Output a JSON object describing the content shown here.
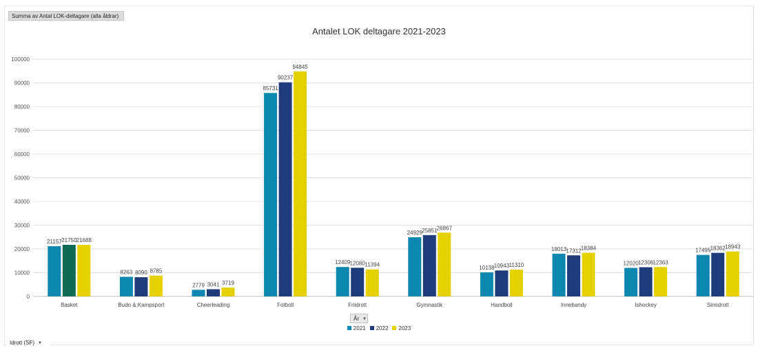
{
  "value_field_label": "Summa av Antal LOK-deltagare (alla åldrar)",
  "axis_field_label": "År",
  "row_field_label": "Idrott (SF)",
  "chart_data": {
    "type": "bar",
    "title": "Antalet LOK deltagare 2021-2023",
    "categories": [
      "Basket",
      "Budo & Kampsport",
      "Cheerleading",
      "Fotboll",
      "Friidrott",
      "Gymnastik",
      "Handboll",
      "Innebandy",
      "Ishockey",
      "Simidrott"
    ],
    "series": [
      {
        "name": "2021",
        "color": "#0d86b0",
        "values": [
          21157,
          8263,
          2779,
          85731,
          12409,
          24929,
          10138,
          18013,
          12020,
          17495
        ]
      },
      {
        "name": "2022",
        "color": "#1f3b7a",
        "values": [
          21750,
          8090,
          3041,
          90237,
          12080,
          25851,
          10943,
          17312,
          12306,
          18362
        ]
      },
      {
        "name": "2023",
        "color": "#e5d100",
        "values": [
          21688,
          8785,
          3719,
          94845,
          11394,
          26867,
          11310,
          18384,
          12363,
          18943
        ]
      }
    ],
    "highlight": {
      "series": 1,
      "category": 0,
      "color": "#0e6b52"
    },
    "ylim": [
      0,
      100000
    ],
    "yticks": [
      0,
      10000,
      20000,
      30000,
      40000,
      50000,
      60000,
      70000,
      80000,
      90000,
      100000
    ],
    "grid": true,
    "legend_position": "bottom"
  }
}
